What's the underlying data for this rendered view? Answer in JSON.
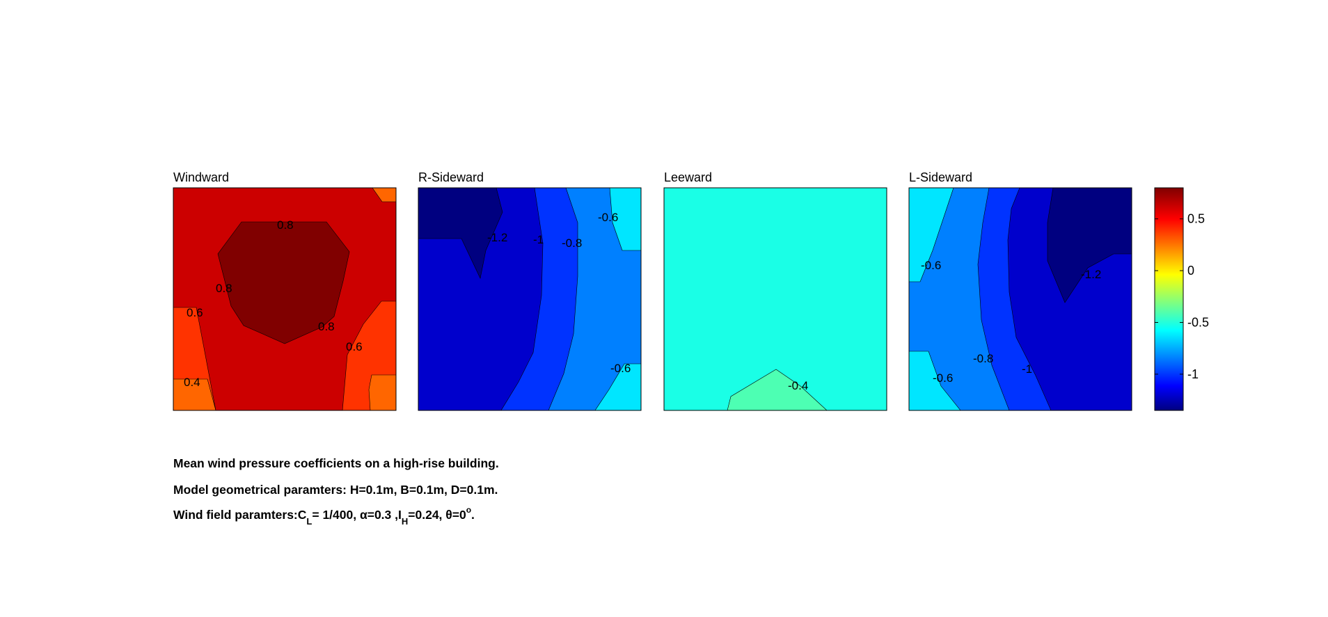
{
  "chart_data": {
    "type": "contour",
    "panels": [
      {
        "title": "Windward",
        "contour_labels": [
          "0.8",
          "0.8",
          "0.8",
          "0.6",
          "0.6",
          "0.4"
        ],
        "regions": [
          {
            "value": 0.7,
            "color": "#cc0000"
          },
          {
            "value": 0.85,
            "color": "#800000"
          },
          {
            "value": 0.5,
            "color": "#ff3300"
          },
          {
            "value": 0.3,
            "color": "#ff6600"
          }
        ]
      },
      {
        "title": "R-Sideward",
        "contour_labels": [
          "-1.2",
          "-1",
          "-0.8",
          "-0.6",
          "-0.6"
        ],
        "regions": [
          {
            "value": -1.1,
            "color": "#0000cc"
          },
          {
            "value": -1.3,
            "color": "#000080"
          },
          {
            "value": -0.9,
            "color": "#0033ff"
          },
          {
            "value": -0.7,
            "color": "#0080ff"
          },
          {
            "value": -0.5,
            "color": "#00e6ff"
          }
        ]
      },
      {
        "title": "Leeward",
        "contour_labels": [
          "-0.4"
        ],
        "regions": [
          {
            "value": -0.5,
            "color": "#1affe6"
          },
          {
            "value": -0.35,
            "color": "#4dffb3"
          }
        ]
      },
      {
        "title": "L-Sideward",
        "contour_labels": [
          "-0.6",
          "-1.2",
          "-0.8",
          "-1",
          "-0.6"
        ],
        "regions": [
          {
            "value": -0.7,
            "color": "#0080ff"
          },
          {
            "value": -0.5,
            "color": "#00e6ff"
          },
          {
            "value": -0.9,
            "color": "#0033ff"
          },
          {
            "value": -1.1,
            "color": "#0000cc"
          },
          {
            "value": -1.3,
            "color": "#000080"
          }
        ]
      }
    ],
    "colorbar": {
      "colormap": "jet",
      "range": [
        -1.35,
        0.8
      ],
      "ticks": [
        0.5,
        0,
        -0.5,
        -1
      ],
      "tick_labels": [
        "0.5",
        "0",
        "-0.5",
        "-1"
      ]
    }
  },
  "caption": {
    "line1": "Mean wind pressure coefficients on a high-rise building.",
    "line2": "Model geometrical paramters: H=0.1m, B=0.1m, D=0.1m.",
    "line3": {
      "prefix": "Wind field paramters:C",
      "sub1": "L",
      "mid1": "= 1/400, ",
      "alpha": "α",
      "mid2": "=0.3 ,I",
      "sub2": "H",
      "mid3": "=0.24, ",
      "theta": "θ",
      "mid4": "=0",
      "sup": "o",
      "end": "."
    }
  }
}
